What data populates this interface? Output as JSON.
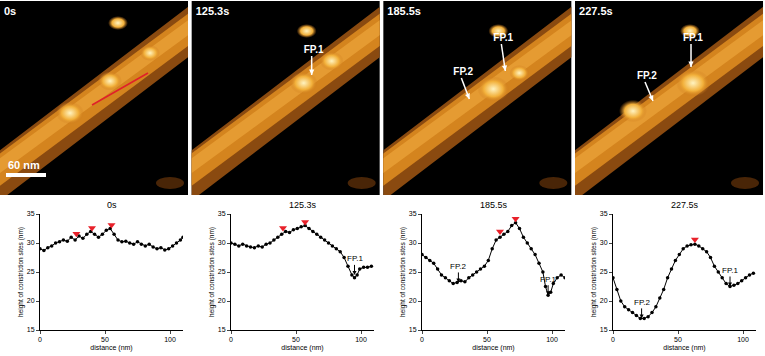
{
  "image_panels": [
    {
      "time": "0s",
      "labels": []
    },
    {
      "time": "125.3s",
      "labels": [
        "FP.1"
      ]
    },
    {
      "time": "185.5s",
      "labels": [
        "FP.2",
        "FP.1"
      ]
    },
    {
      "time": "227.5s",
      "labels": [
        "FP.2",
        "FP.1"
      ]
    }
  ],
  "scale_bar": "60 nm",
  "chart_data": [
    {
      "type": "line",
      "title": "0s",
      "x_label": "distance (nm)",
      "y_label": "height of constriction sites (nm)",
      "x": [
        0,
        3,
        6,
        9,
        12,
        15,
        18,
        21,
        24,
        27,
        30,
        33,
        36,
        39,
        42,
        45,
        48,
        51,
        54,
        57,
        60,
        63,
        66,
        69,
        72,
        75,
        78,
        81,
        84,
        87,
        90,
        93,
        96,
        99,
        102,
        105,
        108,
        110
      ],
      "values": [
        29,
        28.7,
        29.2,
        29.5,
        30,
        30.2,
        30.5,
        30.3,
        31,
        30.5,
        31.2,
        30.8,
        31.5,
        32,
        31.5,
        31,
        31.5,
        32.2,
        32.5,
        31.5,
        30.5,
        30.2,
        30.3,
        30,
        29.8,
        30.2,
        29.8,
        29.5,
        29.8,
        29.3,
        29,
        29.2,
        28.8,
        29,
        29.5,
        30,
        30.5,
        31
      ],
      "color": "#000000",
      "marker": "circle",
      "peaks": {
        "x": [
          28,
          40,
          55
        ],
        "values": [
          31.6,
          32.6,
          33.1
        ],
        "color": "#e8212a",
        "marker": "triangle-down"
      },
      "annotations": [],
      "xlim": [
        0,
        110
      ],
      "xticks": [
        0,
        50,
        100
      ],
      "ylim": [
        15,
        35
      ],
      "yticks": [
        15,
        20,
        25,
        30,
        35
      ]
    },
    {
      "type": "line",
      "title": "125.3s",
      "x_label": "distance (nm)",
      "y_label": "height of constriction sites (nm)",
      "x": [
        0,
        3,
        6,
        9,
        12,
        15,
        18,
        21,
        24,
        27,
        30,
        33,
        36,
        39,
        42,
        45,
        48,
        51,
        54,
        57,
        60,
        63,
        66,
        69,
        72,
        75,
        78,
        81,
        84,
        87,
        90,
        93,
        95,
        97,
        99,
        102,
        105,
        108
      ],
      "values": [
        30,
        29.8,
        29.5,
        29.8,
        29.5,
        29.3,
        29.2,
        29.5,
        29.3,
        29.8,
        30,
        30.5,
        31,
        31.5,
        32,
        31.8,
        32.3,
        32.5,
        32.8,
        33,
        32.5,
        32,
        31.5,
        31,
        30.5,
        30,
        29.5,
        29,
        28.5,
        27.5,
        26,
        24.5,
        24,
        24.5,
        25.5,
        25.8,
        25.8,
        26
      ],
      "color": "#000000",
      "marker": "circle",
      "peaks": {
        "x": [
          40,
          57
        ],
        "values": [
          32.6,
          33.6
        ],
        "color": "#e8212a",
        "marker": "triangle-down"
      },
      "annotations": [
        {
          "text": "FP.1",
          "x": 95,
          "y": 24.5
        }
      ],
      "xlim": [
        0,
        110
      ],
      "xticks": [
        0,
        50,
        100
      ],
      "ylim": [
        15,
        35
      ],
      "yticks": [
        15,
        20,
        25,
        30,
        35
      ]
    },
    {
      "type": "line",
      "title": "185.5s",
      "x_label": "distance (nm)",
      "y_label": "height of constriction sites (nm)",
      "x": [
        0,
        3,
        6,
        9,
        12,
        15,
        18,
        21,
        24,
        27,
        30,
        33,
        36,
        39,
        42,
        45,
        48,
        51,
        54,
        57,
        60,
        63,
        66,
        69,
        72,
        75,
        78,
        81,
        84,
        87,
        90,
        93,
        95,
        97,
        99,
        101,
        104,
        107,
        110
      ],
      "values": [
        28,
        27.5,
        27,
        26.5,
        25.5,
        24.5,
        24,
        23.5,
        23,
        23.2,
        23.5,
        23.3,
        24,
        24.5,
        25,
        25.5,
        26,
        27,
        29,
        30.5,
        31,
        31.5,
        32,
        33,
        33.5,
        32.5,
        31,
        30,
        29,
        28,
        26.5,
        25,
        22.5,
        21,
        21.5,
        23,
        24,
        24.5,
        24
      ],
      "color": "#000000",
      "marker": "circle",
      "peaks": {
        "x": [
          60,
          72
        ],
        "values": [
          32,
          34.2
        ],
        "color": "#e8212a",
        "marker": "triangle-down"
      },
      "annotations": [
        {
          "text": "FP.2",
          "x": 28,
          "y": 23.2
        },
        {
          "text": "FP.1",
          "x": 97,
          "y": 21
        }
      ],
      "xlim": [
        0,
        110
      ],
      "xticks": [
        0,
        50,
        100
      ],
      "ylim": [
        15,
        35
      ],
      "yticks": [
        15,
        20,
        25,
        30,
        35
      ]
    },
    {
      "type": "line",
      "title": "227.5s",
      "x_label": "distance (nm)",
      "y_label": "height of constriction sites (nm)",
      "x": [
        0,
        3,
        6,
        9,
        12,
        15,
        18,
        21,
        24,
        27,
        30,
        33,
        36,
        39,
        42,
        45,
        48,
        51,
        54,
        57,
        60,
        63,
        66,
        69,
        72,
        75,
        78,
        81,
        84,
        87,
        90,
        93,
        96,
        99,
        102,
        105,
        108
      ],
      "values": [
        24,
        22,
        20,
        19,
        18.5,
        18,
        17.5,
        17,
        17,
        17.3,
        18,
        19,
        20.5,
        22,
        24,
        25.5,
        27,
        28,
        29,
        29.5,
        29.7,
        29.8,
        29.5,
        29,
        28.5,
        27.5,
        26,
        25,
        24,
        23,
        22.5,
        22.7,
        23,
        23.5,
        24,
        24.5,
        24.8
      ],
      "color": "#000000",
      "marker": "circle",
      "peaks": {
        "x": [
          63
        ],
        "values": [
          30.6
        ],
        "color": "#e8212a",
        "marker": "triangle-down"
      },
      "annotations": [
        {
          "text": "FP.2",
          "x": 22,
          "y": 17
        },
        {
          "text": "FP.1",
          "x": 90,
          "y": 22.5
        }
      ],
      "xlim": [
        0,
        110
      ],
      "xticks": [
        0,
        50,
        100
      ],
      "ylim": [
        15,
        35
      ],
      "yticks": [
        15,
        20,
        25,
        30,
        35
      ]
    }
  ]
}
